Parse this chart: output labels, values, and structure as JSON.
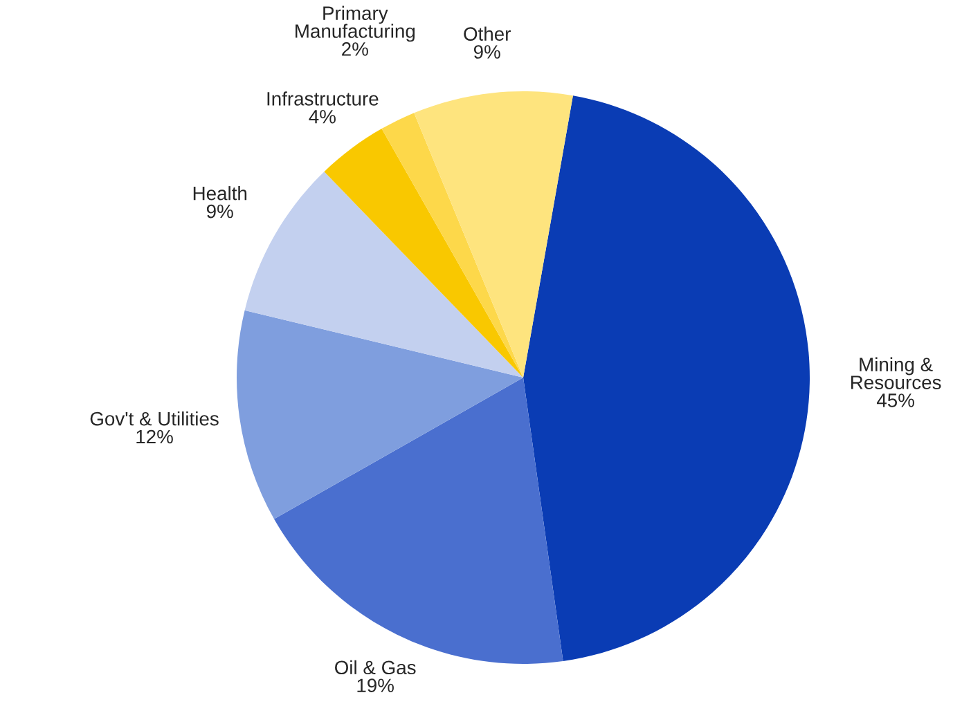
{
  "chart_data": {
    "type": "pie",
    "categories": [
      "Mining & Resources",
      "Oil & Gas",
      "Gov't & Utilities",
      "Health",
      "Infrastructure",
      "Primary Manufacturing",
      "Other"
    ],
    "values": [
      45,
      19,
      12,
      9,
      4,
      2,
      9
    ],
    "colors": [
      "#0a3cb4",
      "#4a6fcf",
      "#7f9ede",
      "#c3d0ef",
      "#f9c800",
      "#fdd84a",
      "#fee47e"
    ],
    "value_labels": [
      "45%",
      "19%",
      "12%",
      "9%",
      "4%",
      "2%",
      "9%"
    ]
  }
}
